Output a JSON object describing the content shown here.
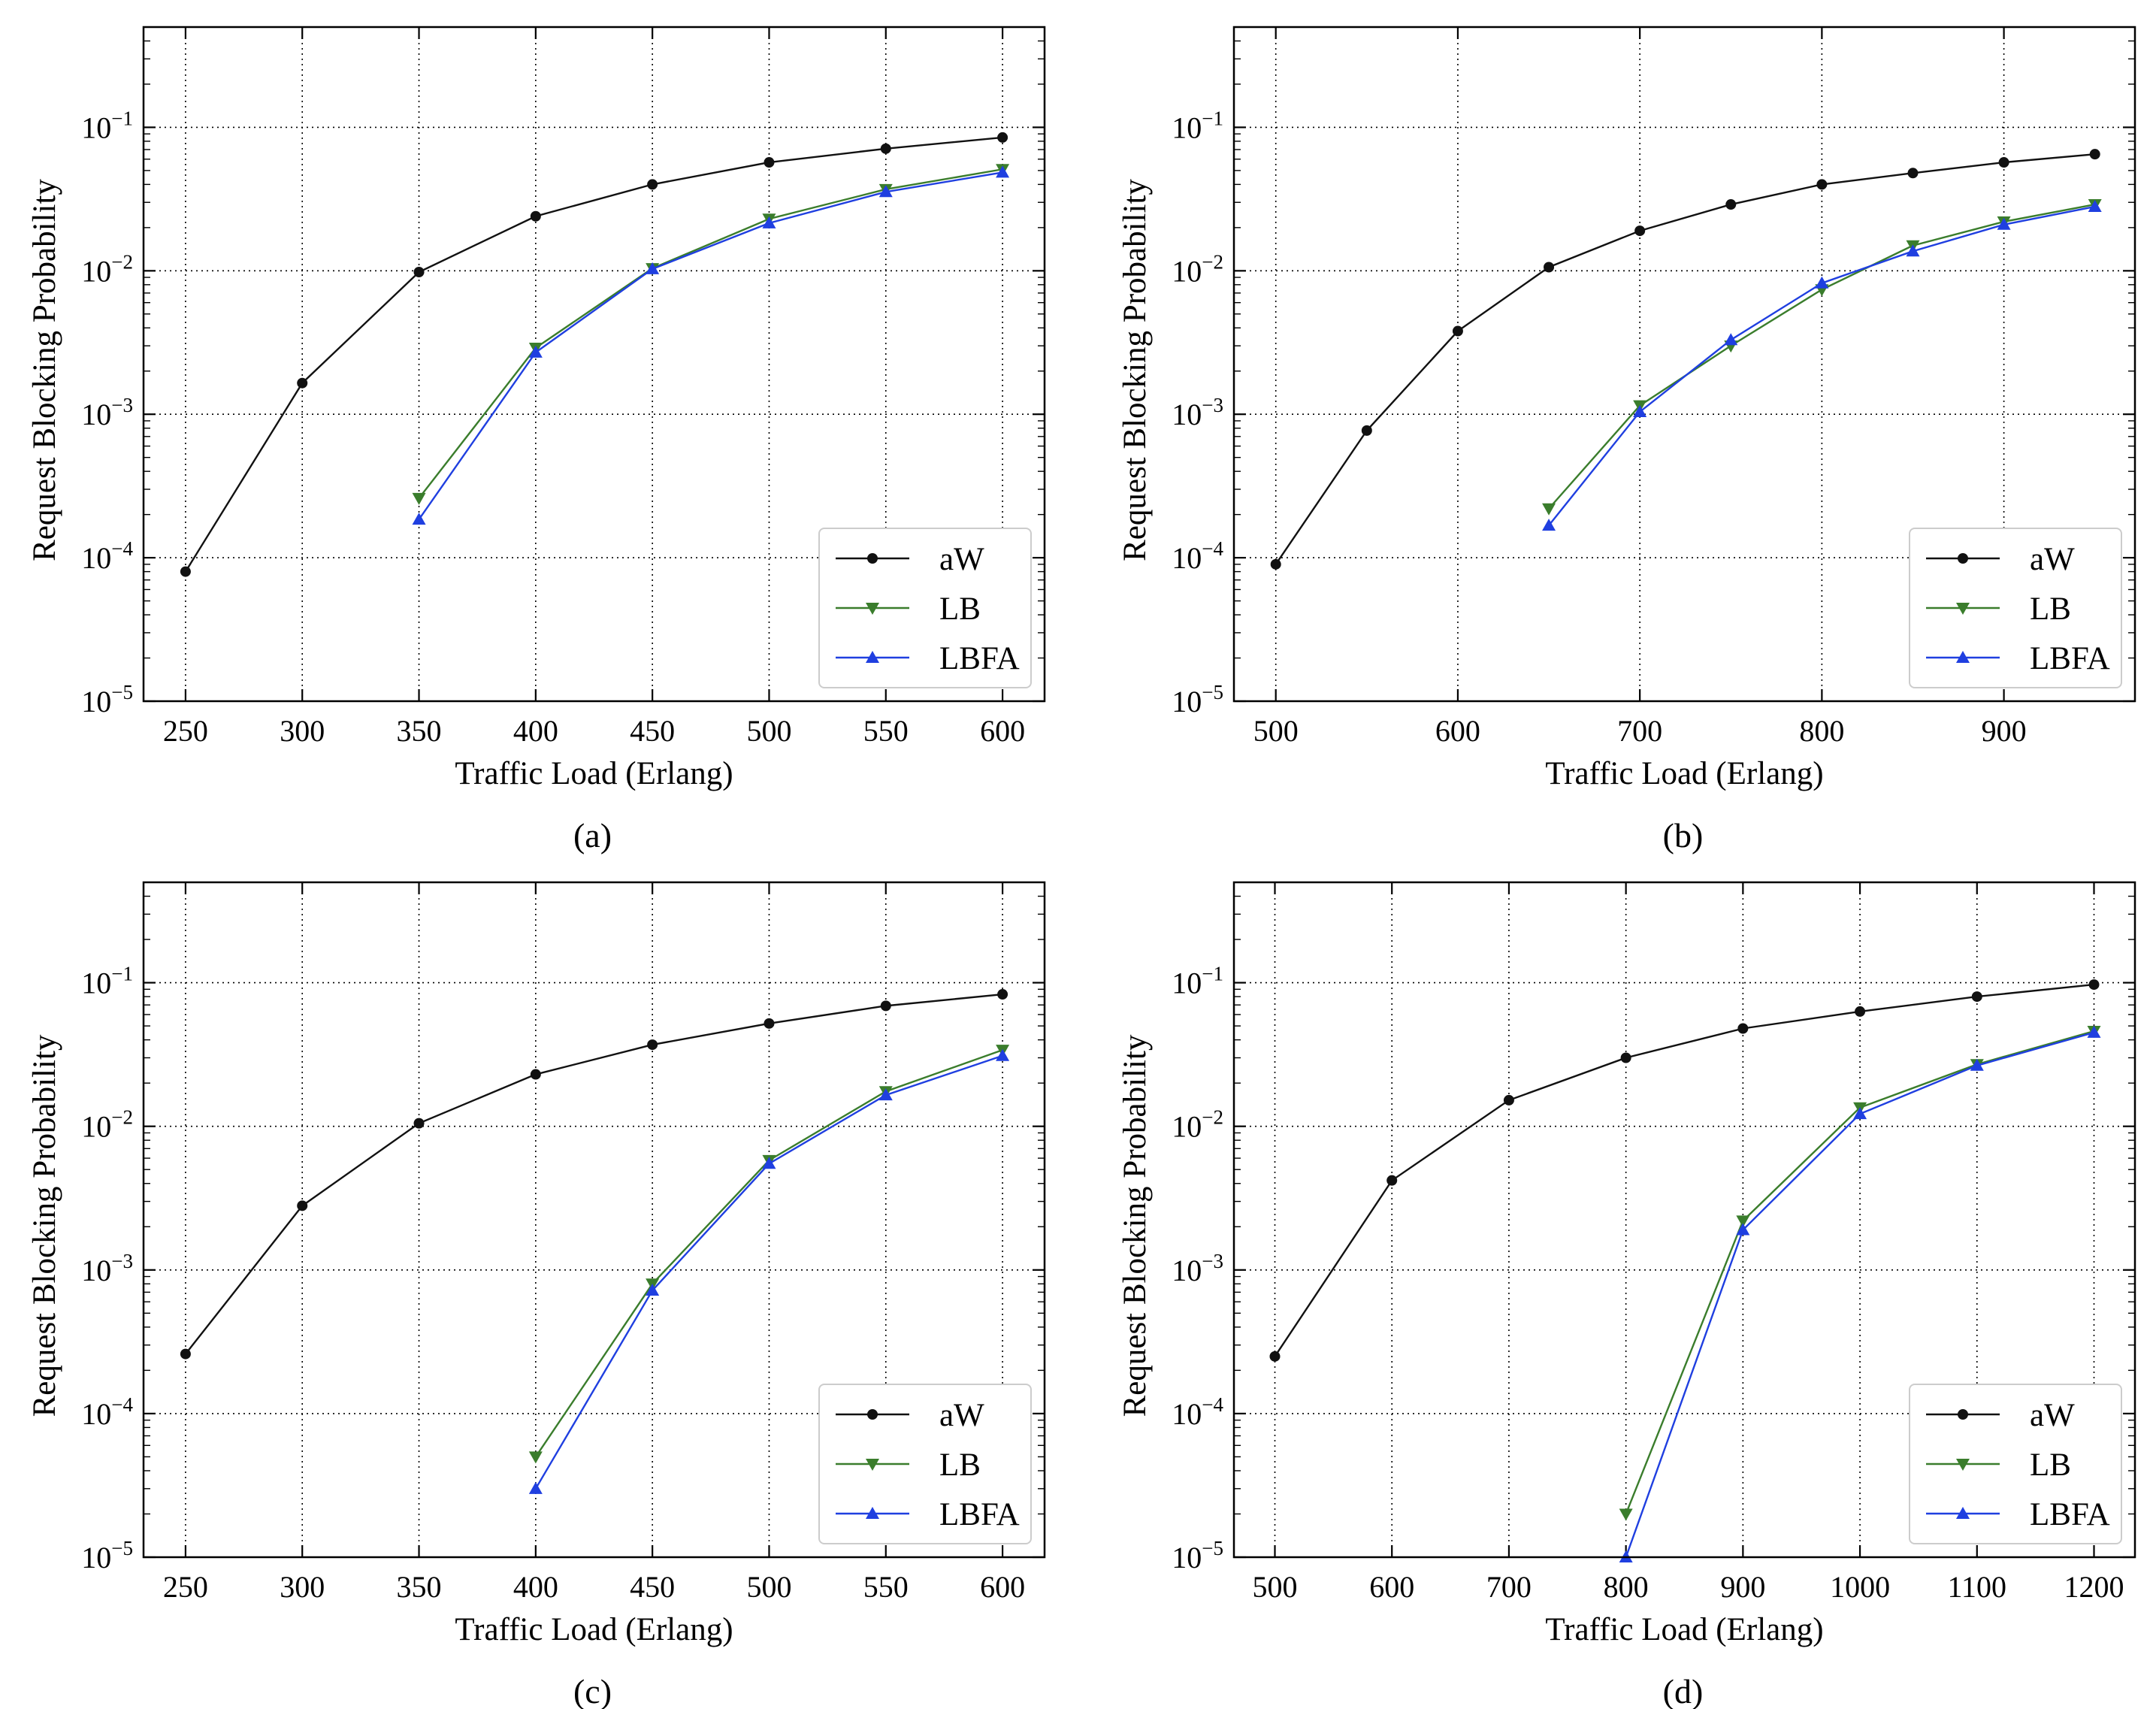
{
  "colors": {
    "aW": "#111111",
    "LB": "#3a7d2c",
    "LBFA": "#1f3fe0"
  },
  "chart_data": [
    {
      "type": "line",
      "caption": "(a)",
      "title": "",
      "xlabel": "Traffic Load (Erlang)",
      "ylabel": "Request Blocking Probability",
      "yscale": "log",
      "xlim": [
        232,
        618
      ],
      "ylim": [
        1e-05,
        0.5
      ],
      "xticks": [
        250,
        300,
        350,
        400,
        450,
        500,
        550,
        600
      ],
      "yticks": [
        {
          "base": "10",
          "exp": "−5",
          "v": 1e-05
        },
        {
          "base": "10",
          "exp": "−4",
          "v": 0.0001
        },
        {
          "base": "10",
          "exp": "−3",
          "v": 0.001
        },
        {
          "base": "10",
          "exp": "−2",
          "v": 0.01
        },
        {
          "base": "10",
          "exp": "−1",
          "v": 0.1
        }
      ],
      "legend": [
        "aW",
        "LB",
        "LBFA"
      ],
      "legend_loc": "lower right",
      "series": [
        {
          "name": "aW",
          "marker": "circle",
          "x": [
            250,
            300,
            350,
            400,
            450,
            500,
            550,
            600
          ],
          "y": [
            8e-05,
            0.00165,
            0.0098,
            0.024,
            0.04,
            0.057,
            0.071,
            0.085
          ]
        },
        {
          "name": "LB",
          "marker": "triangle-down",
          "x": [
            350,
            400,
            450,
            500,
            550,
            600
          ],
          "y": [
            0.00026,
            0.0029,
            0.0104,
            0.023,
            0.037,
            0.051
          ]
        },
        {
          "name": "LBFA",
          "marker": "triangle-up",
          "x": [
            350,
            400,
            450,
            500,
            550,
            600
          ],
          "y": [
            0.000185,
            0.0027,
            0.0103,
            0.0215,
            0.0355,
            0.0485
          ]
        }
      ]
    },
    {
      "type": "line",
      "caption": "(b)",
      "title": "",
      "xlabel": "Traffic Load (Erlang)",
      "ylabel": "Request Blocking Probability",
      "yscale": "log",
      "xlim": [
        477,
        972
      ],
      "ylim": [
        1e-05,
        0.5
      ],
      "xticks": [
        500,
        600,
        700,
        800,
        900
      ],
      "yticks": [
        {
          "base": "10",
          "exp": "−5",
          "v": 1e-05
        },
        {
          "base": "10",
          "exp": "−4",
          "v": 0.0001
        },
        {
          "base": "10",
          "exp": "−3",
          "v": 0.001
        },
        {
          "base": "10",
          "exp": "−2",
          "v": 0.01
        },
        {
          "base": "10",
          "exp": "−1",
          "v": 0.1
        }
      ],
      "legend": [
        "aW",
        "LB",
        "LBFA"
      ],
      "legend_loc": "lower right",
      "series": [
        {
          "name": "aW",
          "marker": "circle",
          "x": [
            500,
            550,
            600,
            650,
            700,
            750,
            800,
            850,
            900,
            950
          ],
          "y": [
            9e-05,
            0.00077,
            0.0038,
            0.0106,
            0.019,
            0.029,
            0.04,
            0.048,
            0.057,
            0.065
          ]
        },
        {
          "name": "LB",
          "marker": "triangle-down",
          "x": [
            650,
            700,
            750,
            800,
            850,
            900,
            950
          ],
          "y": [
            0.00022,
            0.00115,
            0.003,
            0.0074,
            0.015,
            0.022,
            0.029
          ]
        },
        {
          "name": "LBFA",
          "marker": "triangle-up",
          "x": [
            650,
            700,
            750,
            800,
            850,
            900,
            950
          ],
          "y": [
            0.000168,
            0.00104,
            0.0033,
            0.0082,
            0.0137,
            0.021,
            0.028
          ]
        }
      ]
    },
    {
      "type": "line",
      "caption": "(c)",
      "title": "",
      "xlabel": "Traffic Load (Erlang)",
      "ylabel": "Request Blocking Probability",
      "yscale": "log",
      "xlim": [
        232,
        618
      ],
      "ylim": [
        1e-05,
        0.5
      ],
      "xticks": [
        250,
        300,
        350,
        400,
        450,
        500,
        550,
        600
      ],
      "yticks": [
        {
          "base": "10",
          "exp": "−5",
          "v": 1e-05
        },
        {
          "base": "10",
          "exp": "−4",
          "v": 0.0001
        },
        {
          "base": "10",
          "exp": "−3",
          "v": 0.001
        },
        {
          "base": "10",
          "exp": "−2",
          "v": 0.01
        },
        {
          "base": "10",
          "exp": "−1",
          "v": 0.1
        }
      ],
      "legend": [
        "aW",
        "LB",
        "LBFA"
      ],
      "legend_loc": "lower right",
      "series": [
        {
          "name": "aW",
          "marker": "circle",
          "x": [
            250,
            300,
            350,
            400,
            450,
            500,
            550,
            600
          ],
          "y": [
            0.00026,
            0.0028,
            0.0105,
            0.023,
            0.037,
            0.052,
            0.069,
            0.083
          ]
        },
        {
          "name": "LB",
          "marker": "triangle-down",
          "x": [
            400,
            450,
            500,
            550,
            600
          ],
          "y": [
            5e-05,
            0.0008,
            0.0058,
            0.0175,
            0.034
          ]
        },
        {
          "name": "LBFA",
          "marker": "triangle-up",
          "x": [
            400,
            450,
            500,
            550,
            600
          ],
          "y": [
            3e-05,
            0.00072,
            0.0055,
            0.0165,
            0.031
          ]
        }
      ]
    },
    {
      "type": "line",
      "caption": "(d)",
      "title": "",
      "xlabel": "Traffic Load (Erlang)",
      "ylabel": "Request Blocking Probability",
      "yscale": "log",
      "xlim": [
        465,
        1235
      ],
      "ylim": [
        1e-05,
        0.5
      ],
      "xticks": [
        500,
        600,
        700,
        800,
        900,
        1000,
        1100,
        1200
      ],
      "yticks": [
        {
          "base": "10",
          "exp": "−5",
          "v": 1e-05
        },
        {
          "base": "10",
          "exp": "−4",
          "v": 0.0001
        },
        {
          "base": "10",
          "exp": "−3",
          "v": 0.001
        },
        {
          "base": "10",
          "exp": "−2",
          "v": 0.01
        },
        {
          "base": "10",
          "exp": "−1",
          "v": 0.1
        }
      ],
      "legend": [
        "aW",
        "LB",
        "LBFA"
      ],
      "legend_loc": "lower right",
      "series": [
        {
          "name": "aW",
          "marker": "circle",
          "x": [
            500,
            600,
            700,
            800,
            900,
            1000,
            1100,
            1200
          ],
          "y": [
            0.00025,
            0.0042,
            0.0152,
            0.03,
            0.048,
            0.063,
            0.08,
            0.097
          ]
        },
        {
          "name": "LB",
          "marker": "triangle-down",
          "x": [
            800,
            900,
            1000,
            1100,
            1200
          ],
          "y": [
            2e-05,
            0.0022,
            0.0135,
            0.027,
            0.046
          ]
        },
        {
          "name": "LBFA",
          "marker": "triangle-up",
          "x": [
            800,
            900,
            1000,
            1100,
            1200
          ],
          "y": [
            1e-05,
            0.0019,
            0.0122,
            0.0265,
            0.045
          ]
        }
      ]
    }
  ]
}
